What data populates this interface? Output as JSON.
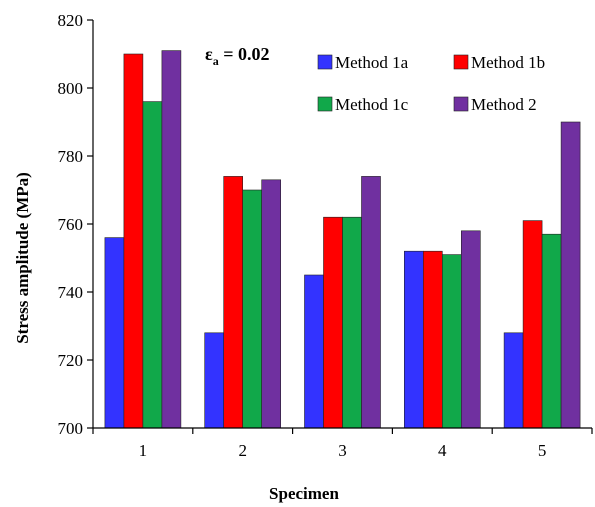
{
  "chart_data": {
    "type": "bar",
    "categories": [
      "1",
      "2",
      "3",
      "4",
      "5"
    ],
    "series": [
      {
        "name": "Method 1a",
        "values": [
          756,
          728,
          745,
          752,
          728
        ]
      },
      {
        "name": "Method 1b",
        "values": [
          810,
          774,
          762,
          752,
          761
        ]
      },
      {
        "name": "Method 1c",
        "values": [
          796,
          770,
          762,
          751,
          757
        ]
      },
      {
        "name": "Method 2",
        "values": [
          811,
          773,
          774,
          758,
          790
        ]
      }
    ],
    "colors": [
      "#3333ff",
      "#ff0000",
      "#11a84a",
      "#7030a0"
    ],
    "xlabel": "Specimen",
    "ylabel": "Stress amplitude (MPa)",
    "ylim": [
      700,
      820
    ],
    "yticks": [
      "700",
      "720",
      "740",
      "760",
      "780",
      "800",
      "820"
    ],
    "annotation": {
      "symbol": "ε",
      "subscript": "a",
      "text": " = 0.02"
    },
    "legend_position": "top-right",
    "grid": false
  }
}
